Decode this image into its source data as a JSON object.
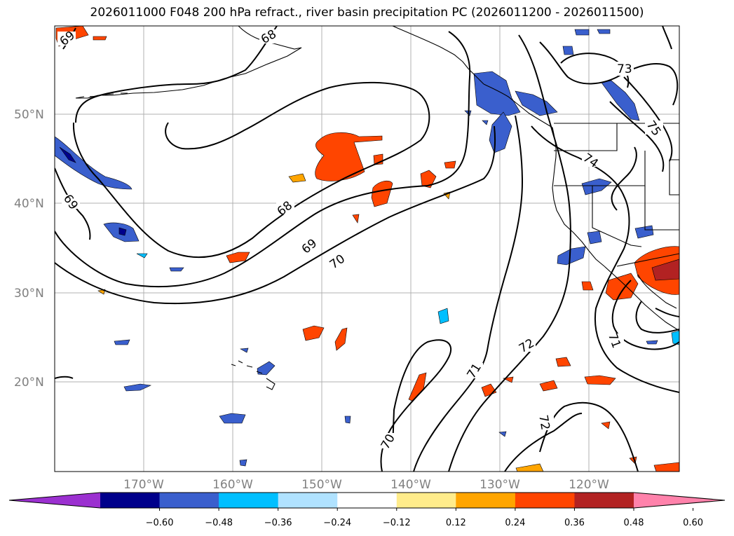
{
  "title": "2026011000 F048 200 hPa refract., river basin precipitation PC (2026011200 - 2026011500)",
  "lat_labels": [
    "50°N",
    "40°N",
    "30°N",
    "20°N"
  ],
  "lon_labels": [
    "170°W",
    "160°W",
    "150°W",
    "140°W",
    "130°W",
    "120°W"
  ],
  "contour_labels": [
    "68",
    "69",
    "70",
    "71",
    "72",
    "73",
    "74",
    "75"
  ],
  "colorbar": {
    "ticks": [
      "−0.60",
      "−0.48",
      "−0.36",
      "−0.24",
      "−0.12",
      "0.12",
      "0.24",
      "0.36",
      "0.48",
      "0.60"
    ],
    "colors": [
      "#9b30d0",
      "#00008b",
      "#3a5fcd",
      "#00bfff",
      "#b0e2ff",
      "#ffffff",
      "#ffec8b",
      "#ffa500",
      "#ff4500",
      "#b22222",
      "#ff82ab"
    ]
  },
  "colors": {
    "gridline": "#b0b0b0",
    "contour": "#000000",
    "coastline": "#000000"
  }
}
